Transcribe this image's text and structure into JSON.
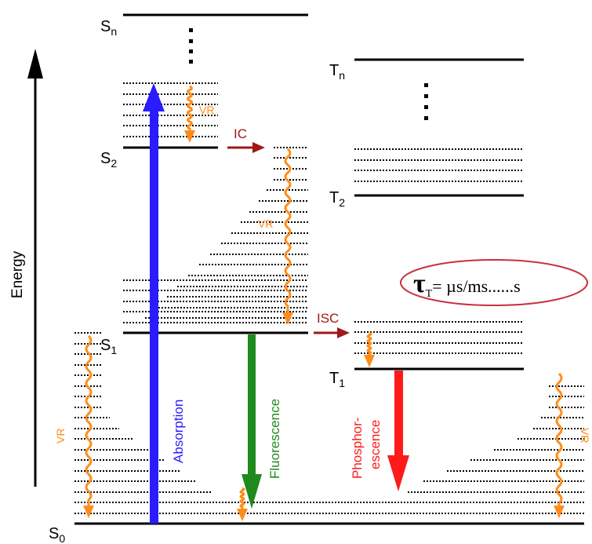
{
  "axis": {
    "label": "Energy"
  },
  "singlet_states": [
    {
      "main": "S",
      "sub": "n"
    },
    {
      "main": "S",
      "sub": "2"
    },
    {
      "main": "S",
      "sub": "1"
    },
    {
      "main": "S",
      "sub": "0"
    }
  ],
  "triplet_states": [
    {
      "main": "T",
      "sub": "n"
    },
    {
      "main": "T",
      "sub": "2"
    },
    {
      "main": "T",
      "sub": "1"
    }
  ],
  "processes": {
    "absorption": "Absorption",
    "fluorescence": "Fluorescence",
    "phosphorescence_line1": "Phosphor-",
    "phosphorescence_line2": "escence",
    "internal_conversion": "IC",
    "intersystem_crossing": "ISC",
    "vibrational_relaxation": "VR"
  },
  "lifetime": {
    "symbol": "τ",
    "subscript": "T",
    "value": "= µs/ms......s"
  },
  "colors": {
    "absorption": "#2a1cff",
    "fluorescence": "#1e8a1e",
    "phosphorescence": "#ff1a1a",
    "ic_isc": "#a01818",
    "vr": "#ff8c1a",
    "ellipse": "#c8303c"
  }
}
